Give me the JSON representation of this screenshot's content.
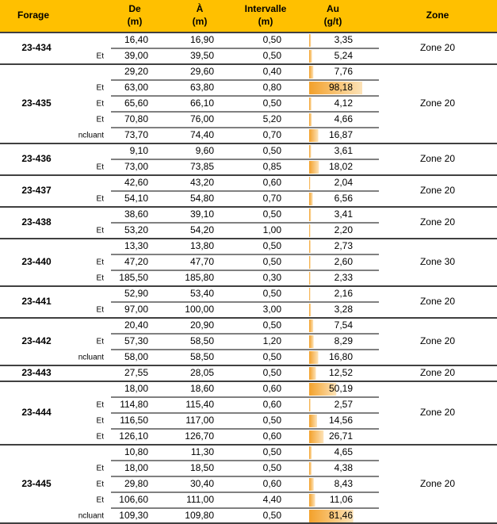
{
  "header": {
    "forage": [
      "Forage"
    ],
    "de": [
      "De",
      "(m)"
    ],
    "a": [
      "À",
      "(m)"
    ],
    "intervalle": [
      "Intervalle",
      "(m)"
    ],
    "au": [
      "Au",
      "(g/t)"
    ],
    "zone": [
      "Zone"
    ]
  },
  "groups": [
    {
      "forage": "23-434",
      "zone": "Zone 20",
      "rows": [
        {
          "de": "16,40",
          "a": "16,90",
          "intervalle": "0,50",
          "au": {
            "value": 3.35,
            "label": "3,35"
          }
        },
        {
          "label": "Et",
          "de": "39,00",
          "a": "39,50",
          "intervalle": "0,50",
          "au": {
            "value": 5.24,
            "label": "5,24"
          }
        }
      ]
    },
    {
      "forage": "23-435",
      "zone": "Zone 20",
      "rows": [
        {
          "de": "29,20",
          "a": "29,60",
          "intervalle": "0,40",
          "au": {
            "value": 7.76,
            "label": "7,76"
          }
        },
        {
          "label": "Et",
          "de": "63,00",
          "a": "63,80",
          "intervalle": "0,80",
          "au": {
            "value": 98.18,
            "label": "98,18"
          }
        },
        {
          "label": "Et",
          "de": "65,60",
          "a": "66,10",
          "intervalle": "0,50",
          "au": {
            "value": 4.12,
            "label": "4,12"
          }
        },
        {
          "label": "Et",
          "de": "70,80",
          "a": "76,00",
          "intervalle": "5,20",
          "au": {
            "value": 4.66,
            "label": "4,66"
          }
        },
        {
          "label": "ncluant",
          "de": "73,70",
          "a": "74,40",
          "intervalle": "0,70",
          "au": {
            "value": 16.87,
            "label": "16,87"
          }
        }
      ]
    },
    {
      "forage": "23-436",
      "zone": "Zone 20",
      "rows": [
        {
          "de": "9,10",
          "a": "9,60",
          "intervalle": "0,50",
          "au": {
            "value": 3.61,
            "label": "3,61"
          }
        },
        {
          "label": "Et",
          "de": "73,00",
          "a": "73,85",
          "intervalle": "0,85",
          "au": {
            "value": 18.02,
            "label": "18,02"
          }
        }
      ]
    },
    {
      "forage": "23-437",
      "zone": "Zone 20",
      "rows": [
        {
          "de": "42,60",
          "a": "43,20",
          "intervalle": "0,60",
          "au": {
            "value": 2.04,
            "label": "2,04"
          }
        },
        {
          "label": "Et",
          "de": "54,10",
          "a": "54,80",
          "intervalle": "0,70",
          "au": {
            "value": 6.56,
            "label": "6,56"
          }
        }
      ]
    },
    {
      "forage": "23-438",
      "zone": "Zone 20",
      "rows": [
        {
          "de": "38,60",
          "a": "39,10",
          "intervalle": "0,50",
          "au": {
            "value": 3.41,
            "label": "3,41"
          }
        },
        {
          "label": "Et",
          "de": "53,20",
          "a": "54,20",
          "intervalle": "1,00",
          "au": {
            "value": 2.2,
            "label": "2,20"
          }
        }
      ]
    },
    {
      "forage": "23-440",
      "zone": "Zone 30",
      "rows": [
        {
          "de": "13,30",
          "a": "13,80",
          "intervalle": "0,50",
          "au": {
            "value": 2.73,
            "label": "2,73"
          }
        },
        {
          "label": "Et",
          "de": "47,20",
          "a": "47,70",
          "intervalle": "0,50",
          "au": {
            "value": 2.6,
            "label": "2,60"
          }
        },
        {
          "label": "Et",
          "de": "185,50",
          "a": "185,80",
          "intervalle": "0,30",
          "au": {
            "value": 2.33,
            "label": "2,33"
          }
        }
      ]
    },
    {
      "forage": "23-441",
      "zone": "Zone 20",
      "rows": [
        {
          "de": "52,90",
          "a": "53,40",
          "intervalle": "0,50",
          "au": {
            "value": 2.16,
            "label": "2,16"
          }
        },
        {
          "label": "Et",
          "de": "97,00",
          "a": "100,00",
          "intervalle": "3,00",
          "au": {
            "value": 3.28,
            "label": "3,28"
          }
        }
      ]
    },
    {
      "forage": "23-442",
      "zone": "Zone 20",
      "rows": [
        {
          "de": "20,40",
          "a": "20,90",
          "intervalle": "0,50",
          "au": {
            "value": 7.54,
            "label": "7,54"
          }
        },
        {
          "label": "Et",
          "de": "57,30",
          "a": "58,50",
          "intervalle": "1,20",
          "au": {
            "value": 8.29,
            "label": "8,29"
          }
        },
        {
          "label": "ncluant",
          "de": "58,00",
          "a": "58,50",
          "intervalle": "0,50",
          "au": {
            "value": 16.8,
            "label": "16,80"
          }
        }
      ]
    },
    {
      "forage": "23-443",
      "zone": "Zone 20",
      "rows": [
        {
          "de": "27,55",
          "a": "28,05",
          "intervalle": "0,50",
          "au": {
            "value": 12.52,
            "label": "12,52"
          }
        }
      ]
    },
    {
      "forage": "23-444",
      "zone": "Zone 20",
      "rows": [
        {
          "de": "18,00",
          "a": "18,60",
          "intervalle": "0,60",
          "au": {
            "value": 50.19,
            "label": "50,19"
          }
        },
        {
          "label": "Et",
          "de": "114,80",
          "a": "115,40",
          "intervalle": "0,60",
          "au": {
            "value": 2.57,
            "label": "2,57"
          }
        },
        {
          "label": "Et",
          "de": "116,50",
          "a": "117,00",
          "intervalle": "0,50",
          "au": {
            "value": 14.56,
            "label": "14,56"
          }
        },
        {
          "label": "Et",
          "de": "126,10",
          "a": "126,70",
          "intervalle": "0,60",
          "au": {
            "value": 26.71,
            "label": "26,71"
          }
        }
      ]
    },
    {
      "forage": "23-445",
      "zone": "Zone 20",
      "rows": [
        {
          "de": "10,80",
          "a": "11,30",
          "intervalle": "0,50",
          "au": {
            "value": 4.65,
            "label": "4,65"
          }
        },
        {
          "label": "Et",
          "de": "18,00",
          "a": "18,50",
          "intervalle": "0,50",
          "au": {
            "value": 4.38,
            "label": "4,38"
          }
        },
        {
          "label": "Et",
          "de": "29,80",
          "a": "30,40",
          "intervalle": "0,60",
          "au": {
            "value": 8.43,
            "label": "8,43"
          }
        },
        {
          "label": "Et",
          "de": "106,60",
          "a": "111,00",
          "intervalle": "4,40",
          "au": {
            "value": 11.06,
            "label": "11,06"
          }
        },
        {
          "label": "ncluant",
          "de": "109,30",
          "a": "109,80",
          "intervalle": "0,50",
          "au": {
            "value": 81.46,
            "label": "81,46"
          }
        }
      ]
    }
  ]
}
